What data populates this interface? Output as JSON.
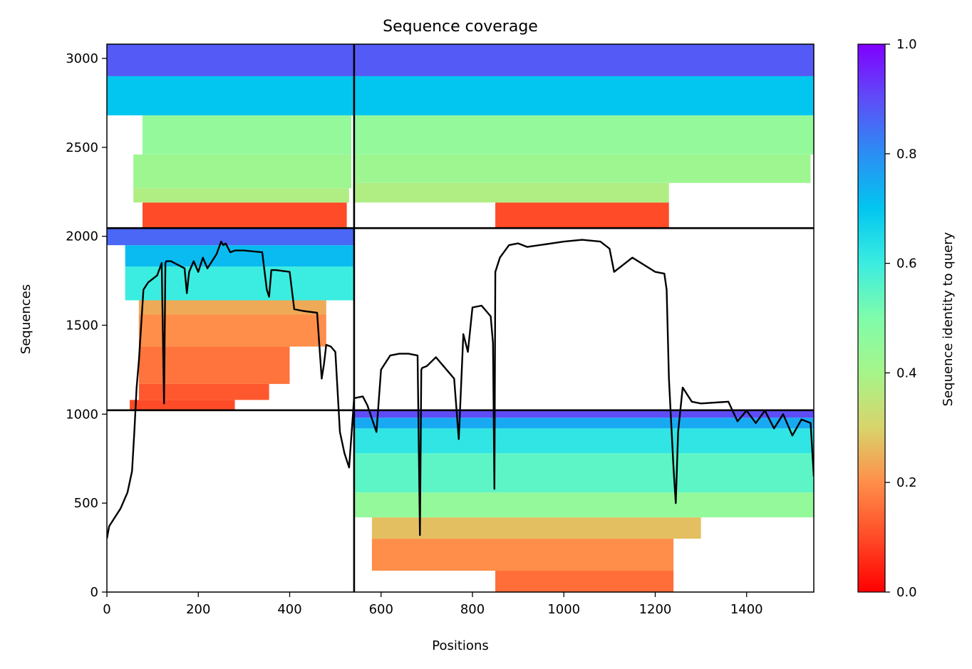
{
  "chart_data": {
    "type": "heatmap",
    "title": "Sequence coverage",
    "xlabel": "Positions",
    "ylabel": "Sequences",
    "xlim": [
      0,
      1547
    ],
    "ylim": [
      0,
      3080
    ],
    "grid": false,
    "x_ticks": [
      0,
      200,
      400,
      600,
      800,
      1000,
      1200,
      1400
    ],
    "y_ticks": [
      0,
      500,
      1000,
      1500,
      2000,
      2500,
      3000
    ],
    "colorbar": {
      "label": "Sequence identity to query",
      "colormap": "rainbow_r",
      "range": [
        0.0,
        1.0
      ],
      "ticks": [
        "0.0",
        "0.2",
        "0.4",
        "0.6",
        "0.8",
        "1.0"
      ]
    },
    "chain_boundaries": {
      "position": 541,
      "sequences": [
        1022,
        2046
      ]
    },
    "blocks": [
      {
        "name": "block-A",
        "x_range": [
          0,
          541
        ],
        "y_range": [
          2046,
          3080
        ],
        "identity_bands": [
          {
            "y": [
              2046,
              2190
            ],
            "identity": 0.1,
            "x": [
              78,
              525
            ]
          },
          {
            "y": [
              2190,
              2270
            ],
            "identity": 0.38,
            "x": [
              58,
              530
            ]
          },
          {
            "y": [
              2270,
              2460
            ],
            "identity": 0.42,
            "x": [
              58,
              535
            ]
          },
          {
            "y": [
              2460,
              2680
            ],
            "identity": 0.45,
            "x": [
              78,
              535
            ]
          },
          {
            "y": [
              2680,
              2900
            ],
            "identity": 0.7,
            "x": [
              0,
              541
            ]
          },
          {
            "y": [
              2900,
              3080
            ],
            "identity": 0.88,
            "x": [
              0,
              541
            ]
          }
        ]
      },
      {
        "name": "block-B",
        "x_range": [
          541,
          1547
        ],
        "y_range": [
          2046,
          3080
        ],
        "identity_bands": [
          {
            "y": [
              2046,
              2190
            ],
            "identity": 0.1,
            "x": [
              850,
              1230
            ]
          },
          {
            "y": [
              2190,
              2300
            ],
            "identity": 0.38,
            "x": [
              541,
              1230
            ]
          },
          {
            "y": [
              2300,
              2460
            ],
            "identity": 0.42,
            "x": [
              541,
              1540
            ]
          },
          {
            "y": [
              2460,
              2680
            ],
            "identity": 0.45,
            "x": [
              541,
              1547
            ]
          },
          {
            "y": [
              2680,
              2900
            ],
            "identity": 0.7,
            "x": [
              541,
              1547
            ]
          },
          {
            "y": [
              2900,
              3080
            ],
            "identity": 0.88,
            "x": [
              541,
              1547
            ]
          }
        ]
      },
      {
        "name": "block-C",
        "x_range": [
          0,
          541
        ],
        "y_range": [
          1022,
          2046
        ],
        "identity_bands": [
          {
            "y": [
              1022,
              1080
            ],
            "identity": 0.1,
            "x": [
              50,
              280
            ]
          },
          {
            "y": [
              1080,
              1170
            ],
            "identity": 0.12,
            "x": [
              70,
              355
            ]
          },
          {
            "y": [
              1170,
              1380
            ],
            "identity": 0.16,
            "x": [
              70,
              400
            ]
          },
          {
            "y": [
              1380,
              1560
            ],
            "identity": 0.2,
            "x": [
              70,
              480
            ]
          },
          {
            "y": [
              1560,
              1640
            ],
            "identity": 0.24,
            "x": [
              70,
              480
            ]
          },
          {
            "y": [
              1640,
              1830
            ],
            "identity": 0.6,
            "x": [
              40,
              541
            ]
          },
          {
            "y": [
              1830,
              1950
            ],
            "identity": 0.72,
            "x": [
              40,
              541
            ]
          },
          {
            "y": [
              1950,
              2046
            ],
            "identity": 0.86,
            "x": [
              0,
              541
            ]
          }
        ]
      },
      {
        "name": "block-D",
        "x_range": [
          541,
          1547
        ],
        "y_range": [
          0,
          1022
        ],
        "identity_bands": [
          {
            "y": [
              0,
              120
            ],
            "identity": 0.15,
            "x": [
              850,
              1240
            ]
          },
          {
            "y": [
              120,
              300
            ],
            "identity": 0.2,
            "x": [
              580,
              1240
            ]
          },
          {
            "y": [
              300,
              420
            ],
            "identity": 0.27,
            "x": [
              580,
              1300
            ]
          },
          {
            "y": [
              420,
              560
            ],
            "identity": 0.45,
            "x": [
              541,
              1547
            ]
          },
          {
            "y": [
              560,
              780
            ],
            "identity": 0.55,
            "x": [
              541,
              1547
            ]
          },
          {
            "y": [
              780,
              920
            ],
            "identity": 0.62,
            "x": [
              541,
              1547
            ]
          },
          {
            "y": [
              920,
              980
            ],
            "identity": 0.75,
            "x": [
              541,
              1547
            ]
          },
          {
            "y": [
              980,
              1022
            ],
            "identity": 0.9,
            "x": [
              541,
              1547
            ]
          }
        ]
      }
    ],
    "coverage_line": {
      "x": [
        0,
        5,
        20,
        30,
        45,
        55,
        60,
        62,
        65,
        70,
        75,
        80,
        90,
        110,
        120,
        125,
        128,
        130,
        140,
        170,
        175,
        180,
        190,
        200,
        210,
        220,
        240,
        250,
        255,
        260,
        270,
        280,
        300,
        340,
        350,
        355,
        360,
        370,
        400,
        410,
        430,
        460,
        470,
        475,
        480,
        490,
        500,
        510,
        520,
        530,
        541,
        560,
        570,
        590,
        600,
        620,
        640,
        660,
        680,
        685,
        688,
        690,
        700,
        720,
        760,
        770,
        780,
        790,
        800,
        820,
        840,
        845,
        848,
        850,
        860,
        880,
        900,
        920,
        1000,
        1040,
        1080,
        1100,
        1110,
        1150,
        1200,
        1220,
        1225,
        1230,
        1240,
        1245,
        1250,
        1260,
        1280,
        1300,
        1360,
        1380,
        1400,
        1420,
        1440,
        1460,
        1480,
        1500,
        1520,
        1540,
        1547
      ],
      "y": [
        300,
        370,
        430,
        470,
        560,
        680,
        900,
        1000,
        1150,
        1300,
        1500,
        1700,
        1740,
        1780,
        1850,
        1060,
        1850,
        1860,
        1860,
        1820,
        1680,
        1800,
        1860,
        1800,
        1880,
        1820,
        1900,
        1970,
        1950,
        1960,
        1910,
        1920,
        1920,
        1910,
        1700,
        1660,
        1810,
        1810,
        1800,
        1590,
        1580,
        1570,
        1200,
        1280,
        1390,
        1380,
        1350,
        900,
        780,
        700,
        1090,
        1100,
        1050,
        900,
        1250,
        1330,
        1340,
        1340,
        1330,
        320,
        1250,
        1260,
        1270,
        1320,
        1200,
        860,
        1450,
        1350,
        1600,
        1610,
        1550,
        1400,
        580,
        1800,
        1880,
        1950,
        1960,
        1940,
        1970,
        1980,
        1970,
        1930,
        1800,
        1880,
        1800,
        1790,
        1700,
        1200,
        700,
        500,
        900,
        1150,
        1070,
        1060,
        1070,
        960,
        1020,
        950,
        1020,
        920,
        1000,
        880,
        970,
        950,
        650
      ]
    }
  }
}
